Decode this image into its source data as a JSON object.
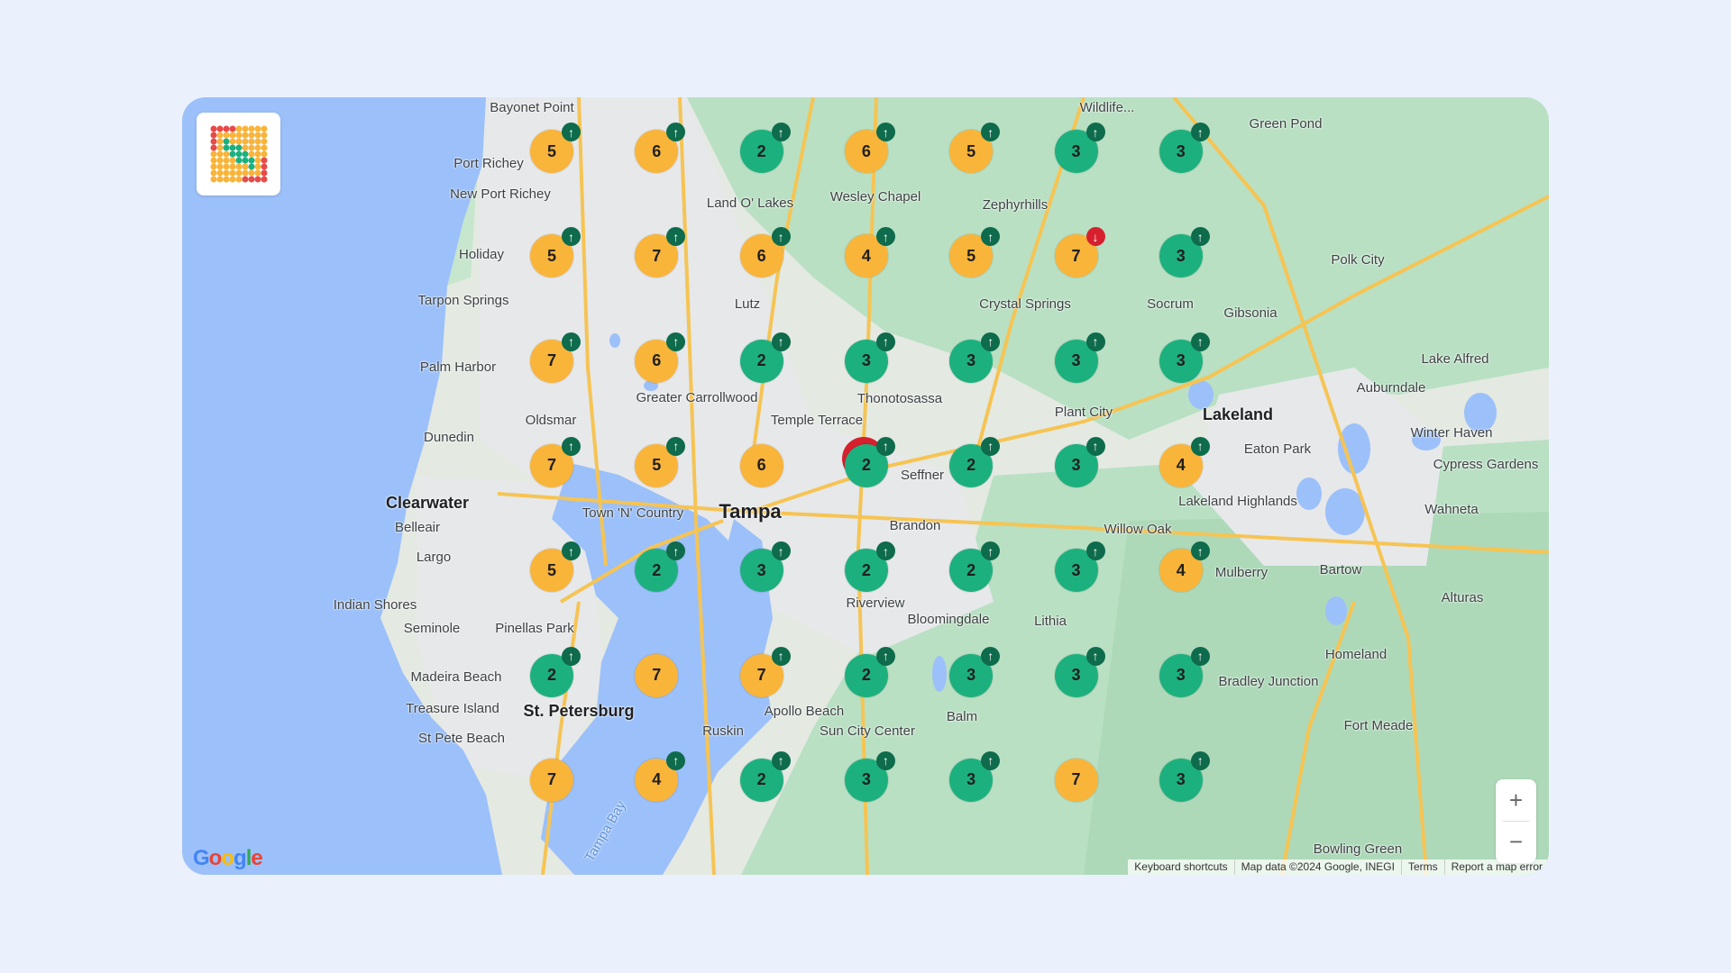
{
  "colors": {
    "high": "#f9b43a",
    "low": "#1db07f",
    "up_badge": "#0e6b4c",
    "down_badge": "#d6202e",
    "water": "#9cc0f9",
    "park": "#b9e0c3"
  },
  "markers": [
    [
      {
        "count": "5",
        "level": "high",
        "trend": "up"
      },
      {
        "count": "6",
        "level": "high",
        "trend": "up"
      },
      {
        "count": "2",
        "level": "low",
        "trend": "up"
      },
      {
        "count": "6",
        "level": "high",
        "trend": "up"
      },
      {
        "count": "5",
        "level": "high",
        "trend": "up"
      },
      {
        "count": "3",
        "level": "low",
        "trend": "up"
      },
      {
        "count": "3",
        "level": "low",
        "trend": "up"
      }
    ],
    [
      {
        "count": "5",
        "level": "high",
        "trend": "up"
      },
      {
        "count": "7",
        "level": "high",
        "trend": "up"
      },
      {
        "count": "6",
        "level": "high",
        "trend": "up"
      },
      {
        "count": "4",
        "level": "high",
        "trend": "up"
      },
      {
        "count": "5",
        "level": "high",
        "trend": "up"
      },
      {
        "count": "7",
        "level": "high",
        "trend": "down"
      },
      {
        "count": "3",
        "level": "low",
        "trend": "up"
      }
    ],
    [
      {
        "count": "7",
        "level": "high",
        "trend": "up"
      },
      {
        "count": "6",
        "level": "high",
        "trend": "up"
      },
      {
        "count": "2",
        "level": "low",
        "trend": "up"
      },
      {
        "count": "3",
        "level": "low",
        "trend": "up"
      },
      {
        "count": "3",
        "level": "low",
        "trend": "up"
      },
      {
        "count": "3",
        "level": "low",
        "trend": "up"
      },
      {
        "count": "3",
        "level": "low",
        "trend": "up"
      }
    ],
    [
      {
        "count": "7",
        "level": "high",
        "trend": "up"
      },
      {
        "count": "5",
        "level": "high",
        "trend": "up"
      },
      {
        "count": "6",
        "level": "high",
        "trend": "none"
      },
      {
        "count": "2",
        "level": "low",
        "trend": "up",
        "hidden_behind": true
      },
      {
        "count": "2",
        "level": "low",
        "trend": "up"
      },
      {
        "count": "3",
        "level": "low",
        "trend": "up"
      },
      {
        "count": "4",
        "level": "high",
        "trend": "up"
      }
    ],
    [
      {
        "count": "5",
        "level": "high",
        "trend": "up"
      },
      {
        "count": "2",
        "level": "low",
        "trend": "up"
      },
      {
        "count": "3",
        "level": "low",
        "trend": "up"
      },
      {
        "count": "2",
        "level": "low",
        "trend": "up"
      },
      {
        "count": "2",
        "level": "low",
        "trend": "up"
      },
      {
        "count": "3",
        "level": "low",
        "trend": "up"
      },
      {
        "count": "4",
        "level": "high",
        "trend": "up"
      }
    ],
    [
      {
        "count": "2",
        "level": "low",
        "trend": "up"
      },
      {
        "count": "7",
        "level": "high",
        "trend": "none"
      },
      {
        "count": "7",
        "level": "high",
        "trend": "up"
      },
      {
        "count": "2",
        "level": "low",
        "trend": "up"
      },
      {
        "count": "3",
        "level": "low",
        "trend": "up"
      },
      {
        "count": "3",
        "level": "low",
        "trend": "up"
      },
      {
        "count": "3",
        "level": "low",
        "trend": "up"
      }
    ],
    [
      {
        "count": "7",
        "level": "high",
        "trend": "none"
      },
      {
        "count": "4",
        "level": "high",
        "trend": "up"
      },
      {
        "count": "2",
        "level": "low",
        "trend": "up"
      },
      {
        "count": "3",
        "level": "low",
        "trend": "up"
      },
      {
        "count": "3",
        "level": "low",
        "trend": "up"
      },
      {
        "count": "7",
        "level": "high",
        "trend": "none"
      },
      {
        "count": "3",
        "level": "low",
        "trend": "up"
      }
    ]
  ],
  "labels": [
    "Bayonet Point",
    "Port Richey",
    "New Port Richey",
    "Holiday",
    "Tarpon Springs",
    "Palm Harbor",
    "Dunedin",
    "Oldsmar",
    "Clearwater",
    "Belleair",
    "Largo",
    "Indian Shores",
    "Seminole",
    "Pinellas Park",
    "Madeira Beach",
    "Treasure Island",
    "St. Petersburg",
    "St Pete Beach",
    "Tampa Bay",
    "Tampa",
    "Land O' Lakes",
    "Wesley Chapel",
    "Zephyrhills",
    "Lutz",
    "Greater Carrollwood",
    "Temple Terrace",
    "Thonotosassa",
    "Town 'N' Country",
    "Seffner",
    "Brandon",
    "Riverview",
    "Bloomingdale",
    "Lithia",
    "Apollo Beach",
    "Balm",
    "Ruskin",
    "Sun City Center",
    "Plant City",
    "Lakeland",
    "Eaton Park",
    "Lakeland Highlands",
    "Willow Oak",
    "Mulberry",
    "Bartow",
    "Alturas",
    "Homeland",
    "Fort Meade",
    "Bowling Green",
    "Green Pond",
    "Polk City",
    "Socrum",
    "Gibsonia",
    "Lake Alfred",
    "Auburndale",
    "Winter Haven",
    "Cypress Gardens",
    "Wahneta",
    "Bradley Junction",
    "Crystal Springs",
    "Wildlife..."
  ],
  "zoom": {
    "in": "+",
    "out": "−"
  },
  "attribution": {
    "shortcuts": "Keyboard shortcuts",
    "data": "Map data ©2024 Google, INEGI",
    "terms": "Terms",
    "report": "Report a map error"
  },
  "google_logo": "Google"
}
